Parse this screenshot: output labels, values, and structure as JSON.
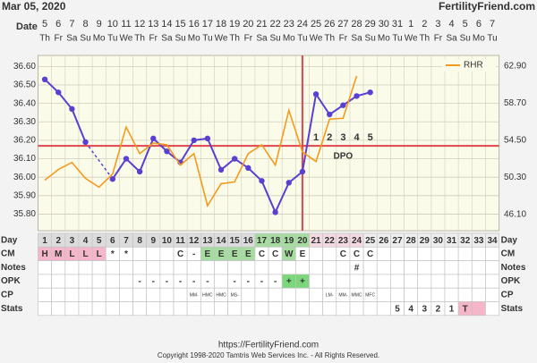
{
  "header": {
    "date": "Mar 05, 2020",
    "site": "FertilityFriend.com"
  },
  "chart_data": {
    "type": "line",
    "x_label": "Date",
    "categories": [
      "5",
      "6",
      "7",
      "8",
      "9",
      "10",
      "11",
      "12",
      "13",
      "14",
      "15",
      "16",
      "17",
      "18",
      "19",
      "20",
      "21",
      "22",
      "23",
      "24",
      "25",
      "26",
      "27",
      "28",
      "29",
      "30",
      "31",
      "1",
      "2",
      "3",
      "4",
      "5",
      "6",
      "7"
    ],
    "weekdays": [
      "Th",
      "Fr",
      "Sa",
      "Su",
      "Mo",
      "Tu",
      "We",
      "Th",
      "Fr",
      "Sa",
      "Su",
      "Mo",
      "Tu",
      "We",
      "Th",
      "Fr",
      "Sa",
      "Su",
      "Mo",
      "Tu",
      "We",
      "Th",
      "Fr",
      "Sa",
      "Su",
      "Mo",
      "Tu",
      "We",
      "Th",
      "Fr",
      "Sa",
      "Su",
      "Mo",
      "Tu"
    ],
    "series": [
      {
        "color": "#5a3fd0",
        "values": [
          36.53,
          36.46,
          36.37,
          36.19,
          null,
          35.99,
          36.1,
          36.03,
          36.21,
          36.14,
          36.08,
          36.2,
          36.21,
          36.04,
          36.1,
          36.05,
          35.98,
          35.81,
          35.97,
          36.03,
          36.45,
          36.34,
          36.39,
          36.44,
          36.46,
          null,
          null,
          null,
          null,
          null,
          null,
          null,
          null,
          null
        ]
      },
      {
        "name": "RHR",
        "color": "#f39a1e",
        "axis": "y2",
        "values": [
          50.0,
          51.2,
          52.0,
          50.2,
          49.2,
          50.7,
          56.0,
          53.0,
          54.2,
          54.0,
          51.7,
          53.0,
          47.1,
          49.6,
          49.8,
          53.0,
          54.0,
          51.7,
          57.9,
          53.2,
          52.1,
          56.9,
          57.0,
          61.8,
          null,
          null,
          null,
          null,
          null,
          null,
          null,
          null,
          null,
          null
        ]
      }
    ],
    "ylim": [
      35.71,
      36.66
    ],
    "yticks": [
      {
        "value": 35.8,
        "label": "35.80"
      },
      {
        "value": 35.9,
        "label": "35.90"
      },
      {
        "value": 36.0,
        "label": "36.00"
      },
      {
        "value": 36.1,
        "label": "36.10"
      },
      {
        "value": 36.2,
        "label": "36.20"
      },
      {
        "value": 36.3,
        "label": "36.30"
      },
      {
        "value": 36.4,
        "label": "36.40"
      },
      {
        "value": 36.5,
        "label": "36.50"
      },
      {
        "value": 36.6,
        "label": "36.60"
      }
    ],
    "y2lim": [
      44.28,
      64.11
    ],
    "y2ticks": [
      {
        "value": 46.1,
        "label": "46.10"
      },
      {
        "value": 50.3,
        "label": "50.30"
      },
      {
        "value": 54.5,
        "label": "54.50"
      },
      {
        "value": 58.7,
        "label": "58.70"
      },
      {
        "value": 62.9,
        "label": "62.90"
      }
    ],
    "grid": true,
    "legend": "top-right",
    "coverline": 36.17,
    "ovulation_day": 20,
    "dpo": [
      null,
      null,
      null,
      null,
      null,
      null,
      null,
      null,
      null,
      null,
      null,
      null,
      null,
      null,
      null,
      null,
      null,
      null,
      null,
      null,
      1,
      2,
      3,
      4,
      5,
      null,
      null,
      null,
      null,
      null,
      null,
      null,
      null,
      null
    ],
    "dpo_label": "DPO"
  },
  "table": {
    "rows": [
      {
        "label": "Day",
        "cells": [
          1,
          2,
          3,
          4,
          5,
          6,
          7,
          8,
          9,
          10,
          11,
          12,
          13,
          14,
          15,
          16,
          17,
          18,
          19,
          20,
          21,
          22,
          23,
          24,
          25,
          26,
          27,
          28,
          29,
          30,
          31,
          32,
          33,
          34
        ],
        "fills": [
          "#dcdcdc",
          "#dcdcdc",
          "#dcdcdc",
          "#dcdcdc",
          "#dcdcdc",
          "#dcdcdc",
          "#dcdcdc",
          "#dcdcdc",
          "#dcdcdc",
          "#dcdcdc",
          "#dcdcdc",
          "#dcdcdc",
          "#dcdcdc",
          "#dcdcdc",
          "#dcdcdc",
          "#dcdcdc",
          "#a6dca0",
          "#a6dca0",
          "#a6dca0",
          "#a6dca0",
          "#f3d9e1",
          "#f3d9e1",
          "#f3d9e1",
          "#f3d9e1",
          "#eeeeee",
          "#eeeeee",
          "#eeeeee",
          "#eeeeee",
          "#eeeeee",
          "#eeeeee",
          "#eeeeee",
          "#eeeeee",
          "#eeeeee",
          "#eeeeee"
        ]
      },
      {
        "label": "CM",
        "cells": [
          "H",
          "M",
          "L",
          "L",
          "L",
          "*",
          "*",
          null,
          null,
          null,
          "C",
          "-",
          "E",
          "E",
          "E",
          "E",
          "C",
          "C",
          "W",
          "E",
          null,
          null,
          "C",
          "C",
          "C",
          null,
          null,
          null,
          null,
          null,
          null,
          null,
          null,
          null
        ],
        "fills": [
          "#f4b6c8",
          "#f4b6c8",
          "#f4b6c8",
          "#f4b6c8",
          "#f4b6c8",
          null,
          null,
          null,
          null,
          null,
          null,
          null,
          "#a6dca0",
          "#a6dca0",
          "#a6dca0",
          "#a6dca0",
          null,
          null,
          "#a6dca0",
          null,
          null,
          null,
          null,
          null,
          null,
          null,
          null,
          null,
          null,
          null,
          null,
          null,
          null,
          null
        ]
      },
      {
        "label": "Notes",
        "cells": [
          null,
          null,
          null,
          null,
          null,
          null,
          null,
          null,
          null,
          null,
          null,
          null,
          null,
          null,
          null,
          null,
          null,
          null,
          null,
          null,
          null,
          null,
          null,
          "#",
          null,
          null,
          null,
          null,
          null,
          null,
          null,
          null,
          null,
          null
        ]
      },
      {
        "label": "OPK",
        "cells": [
          null,
          null,
          null,
          null,
          null,
          null,
          null,
          "-",
          "-",
          "-",
          "-",
          "-",
          "-",
          null,
          "-",
          "-",
          "-",
          "-",
          "+",
          "+",
          null,
          null,
          null,
          null,
          null,
          null,
          null,
          null,
          null,
          null,
          null,
          null,
          null,
          null
        ],
        "fills": [
          null,
          null,
          null,
          null,
          null,
          null,
          null,
          null,
          null,
          null,
          null,
          null,
          null,
          null,
          null,
          null,
          null,
          null,
          "#7bd87a",
          "#7bd87a",
          null,
          null,
          null,
          null,
          null,
          null,
          null,
          null,
          null,
          null,
          null,
          null,
          null,
          null
        ]
      },
      {
        "label": "CP",
        "cells": [
          null,
          null,
          null,
          null,
          null,
          null,
          null,
          null,
          null,
          null,
          null,
          "MM-",
          "HMC",
          "HMC",
          "MS-",
          null,
          null,
          null,
          null,
          null,
          null,
          "LM-",
          "MM-",
          "MMC",
          "MFC",
          null,
          null,
          null,
          null,
          null,
          null,
          null,
          null,
          null
        ]
      },
      {
        "label": "Stats",
        "cells": [
          null,
          null,
          null,
          null,
          null,
          null,
          null,
          null,
          null,
          null,
          null,
          null,
          null,
          null,
          null,
          null,
          null,
          null,
          null,
          null,
          null,
          null,
          null,
          null,
          null,
          null,
          5,
          4,
          3,
          2,
          1,
          "T",
          null,
          null
        ],
        "fills": [
          null,
          null,
          null,
          null,
          null,
          null,
          null,
          null,
          null,
          null,
          null,
          null,
          null,
          null,
          null,
          null,
          null,
          null,
          null,
          null,
          null,
          null,
          null,
          null,
          null,
          null,
          null,
          null,
          null,
          null,
          null,
          "#f4b6c8",
          "#f4b6c8",
          null
        ]
      }
    ]
  },
  "footer": {
    "url": "https://FertilityFriend.com",
    "copyright": "Copyright 1998-2020 Tamtris Web Services Inc. - All Rights Reserved."
  }
}
